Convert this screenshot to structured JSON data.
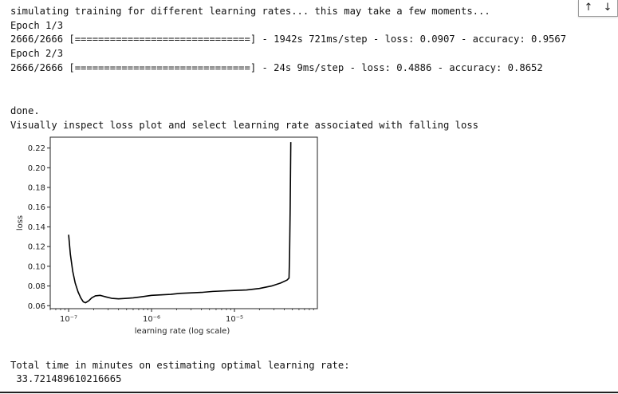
{
  "output": {
    "line1": "simulating training for different learning rates... this may take a few moments...",
    "epoch1_label": "Epoch 1/3",
    "epoch1_progress": "2666/2666 [==============================] - 1942s 721ms/step - loss: 0.0907 - accuracy: 0.9567",
    "epoch2_label": "Epoch 2/3",
    "epoch2_progress": "2666/2666 [==============================] - 24s 9ms/step - loss: 0.4886 - accuracy: 0.8652",
    "done": "done.",
    "inspect": "Visually inspect loss plot and select learning rate associated with falling loss",
    "total_label": "Total time in minutes on estimating optimal learning rate:",
    "total_value": " 33.721489610216665"
  },
  "toolbar": {
    "up_glyph": "↑",
    "down_glyph": "↓"
  },
  "chart_data": {
    "type": "line",
    "xlabel": "learning rate (log scale)",
    "ylabel": "loss",
    "xscale": "log",
    "xlim": [
      6e-08,
      0.0001
    ],
    "ylim": [
      0.057,
      0.231
    ],
    "xticks": [
      1e-07,
      1e-06,
      1e-05
    ],
    "xtick_labels": [
      "10⁻⁷",
      "10⁻⁶",
      "10⁻⁵"
    ],
    "yticks": [
      0.06,
      0.08,
      0.1,
      0.12,
      0.14,
      0.16,
      0.18,
      0.2,
      0.22
    ],
    "ytick_labels": [
      "0.06",
      "0.08",
      "0.10",
      "0.12",
      "0.14",
      "0.16",
      "0.18",
      "0.20",
      "0.22"
    ],
    "grid": false,
    "series": [
      {
        "color": "#000000",
        "x": [
          1e-07,
          1.05e-07,
          1.12e-07,
          1.2e-07,
          1.3e-07,
          1.4e-07,
          1.5e-07,
          1.6e-07,
          1.75e-07,
          1.9e-07,
          2.1e-07,
          2.4e-07,
          2.8e-07,
          3.3e-07,
          4e-07,
          5e-07,
          6e-07,
          7.5e-07,
          1e-06,
          1.3e-06,
          1.7e-06,
          2.2e-06,
          3e-06,
          4e-06,
          5.5e-06,
          7.5e-06,
          1e-05,
          1.4e-05,
          2e-05,
          2.8e-05,
          3.6e-05,
          4.3e-05,
          4.55e-05,
          4.62e-05,
          4.7e-05,
          4.78e-05
        ],
        "y": [
          0.132,
          0.112,
          0.095,
          0.083,
          0.074,
          0.068,
          0.064,
          0.063,
          0.065,
          0.068,
          0.07,
          0.0705,
          0.069,
          0.0675,
          0.067,
          0.0675,
          0.068,
          0.069,
          0.0705,
          0.071,
          0.0715,
          0.0725,
          0.073,
          0.0735,
          0.0745,
          0.075,
          0.0755,
          0.076,
          0.0775,
          0.08,
          0.083,
          0.086,
          0.088,
          0.11,
          0.16,
          0.226
        ]
      }
    ]
  }
}
